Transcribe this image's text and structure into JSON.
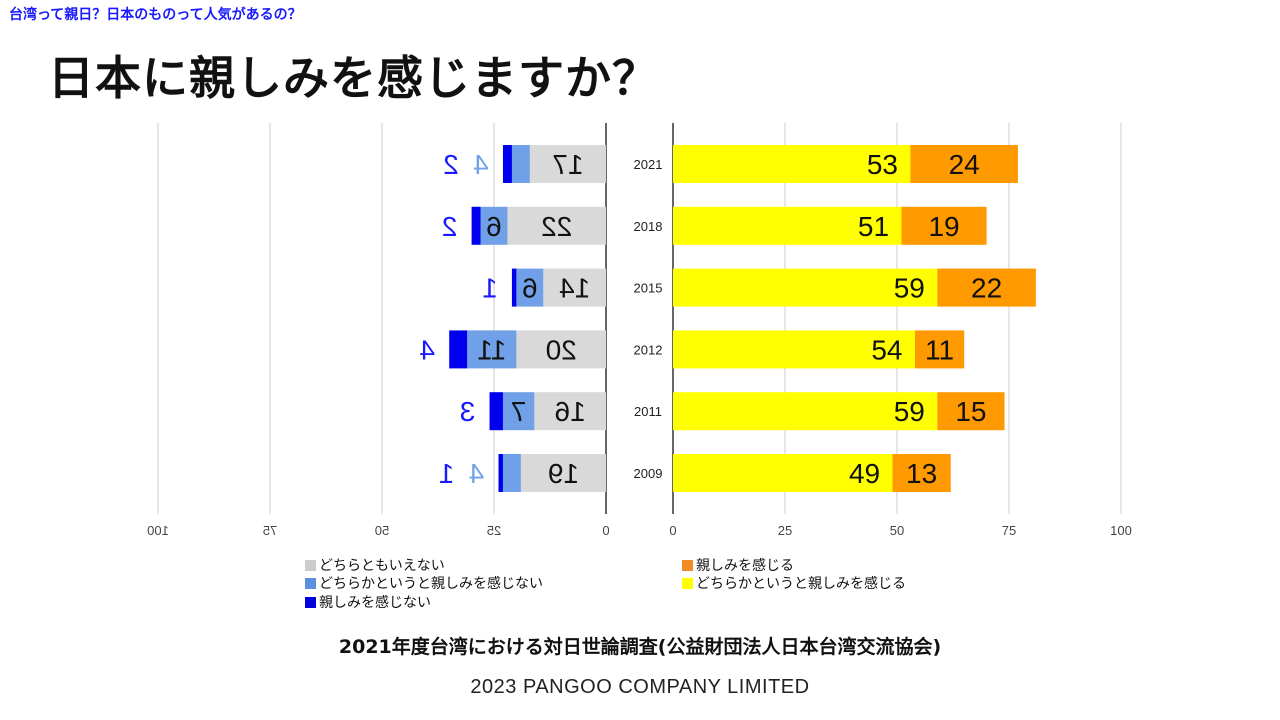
{
  "header": {
    "top_link": "台湾って親日？日本のものって人気があるの？",
    "title": "日本に親しみを感じますか？"
  },
  "chart_data": {
    "type": "bar",
    "orientation": "horizontal",
    "categories": [
      "2021",
      "2018",
      "2015",
      "2012",
      "2011",
      "2009"
    ],
    "left_panel": {
      "axis_mirrored": true,
      "xlim": [
        0,
        100
      ],
      "ticks": [
        "0",
        "25",
        "50",
        "75",
        "100"
      ],
      "series": [
        {
          "name": "どちらともいえない",
          "color": "#d9d9d9",
          "values": [
            17,
            22,
            14,
            20,
            16,
            19
          ]
        },
        {
          "name": "どちらかというと親しみを感じない",
          "color": "#6fa0e8",
          "values": [
            4,
            6,
            6,
            11,
            7,
            4
          ]
        },
        {
          "name": "親しみを感じない",
          "color": "#0000ee",
          "values": [
            2,
            2,
            1,
            4,
            3,
            1
          ]
        }
      ]
    },
    "right_panel": {
      "xlim": [
        0,
        100
      ],
      "ticks": [
        "0",
        "25",
        "50",
        "75",
        "100"
      ],
      "series": [
        {
          "name": "どちらかというと親しみを感じる",
          "color": "#ffff00",
          "values": [
            53,
            51,
            59,
            54,
            59,
            49
          ]
        },
        {
          "name": "親しみを感じる",
          "color": "#ff9900",
          "values": [
            24,
            19,
            22,
            11,
            15,
            13
          ]
        }
      ]
    },
    "legend": [
      {
        "label": "どちらともいえない",
        "color": "#cccccc"
      },
      {
        "label": "どちらかというと親しみを感じない",
        "color": "#5b8fe0"
      },
      {
        "label": "親しみを感じない",
        "color": "#0000dd"
      },
      {
        "label": "親しみを感じる",
        "color": "#f08a24"
      },
      {
        "label": "どちらかというと親しみを感じる",
        "color": "#ffff00"
      }
    ],
    "grid": true,
    "legend_placement": "bottom"
  },
  "source": "2021年度台湾における対日世論調査(公益財団法人日本台湾交流協会)",
  "footer": "2023 PANGOO COMPANY LIMITED"
}
